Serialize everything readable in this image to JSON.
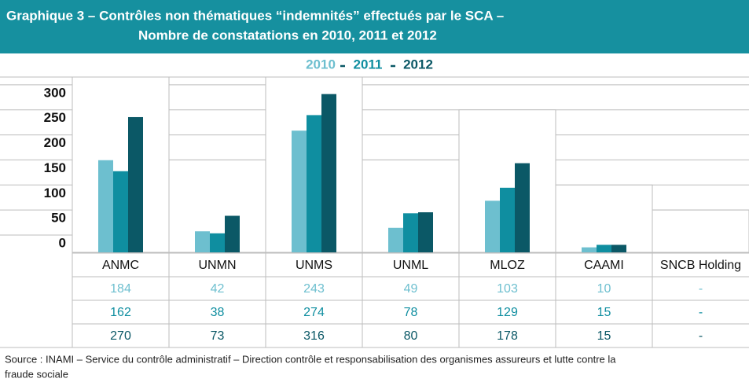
{
  "chart_data": {
    "type": "bar",
    "title": [
      "Graphique 3 – Contrôles non thématiques “indemnités” effectués par le SCA –",
      "Nombre de constatations en 2010, 2011 et 2012"
    ],
    "categories": [
      "ANMC",
      "UNMN",
      "UNMS",
      "UNML",
      "MLOZ",
      "CAAMI",
      "SNCB Holding"
    ],
    "series": [
      {
        "name": "2010",
        "color": "#6dbfcf",
        "values": [
          184,
          42,
          243,
          49,
          103,
          10,
          null
        ],
        "value_labels": [
          "184",
          "42",
          "243",
          "49",
          "103",
          "10",
          "-"
        ]
      },
      {
        "name": "2011",
        "color": "#0f8ea0",
        "values": [
          162,
          38,
          274,
          78,
          129,
          15,
          null
        ],
        "value_labels": [
          "162",
          "38",
          "274",
          "78",
          "129",
          "15",
          "-"
        ]
      },
      {
        "name": "2012",
        "color": "#0b5866",
        "values": [
          270,
          73,
          316,
          80,
          178,
          15,
          null
        ],
        "value_labels": [
          "270",
          "73",
          "316",
          "80",
          "178",
          "15",
          "-"
        ]
      }
    ],
    "ylim": [
      0,
      350
    ],
    "yticks": [
      0,
      50,
      100,
      150,
      200,
      250,
      300
    ],
    "grid": true,
    "source": [
      "Source : INAMI – Service du contrôle administratif – Direction contrôle et responsabilisation des organismes assureurs et lutte contre la",
      "fraude sociale"
    ]
  }
}
